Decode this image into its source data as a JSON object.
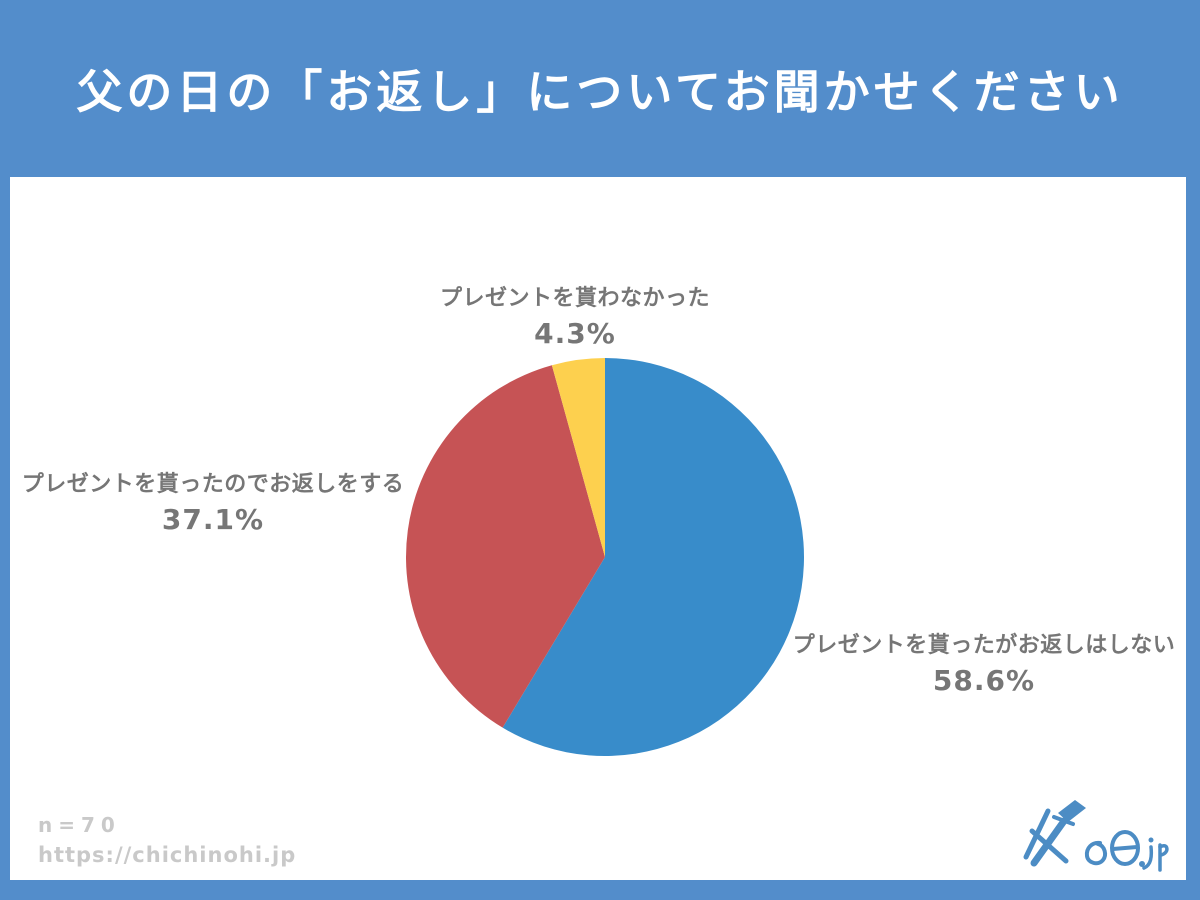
{
  "header": {
    "title": "父の日の「お返し」についてお聞かせください"
  },
  "chart_data": {
    "type": "pie",
    "title": "父の日の「お返し」についてお聞かせください",
    "start_angle_deg": 0,
    "direction": "clockwise",
    "legend_position": "labels-around-pie",
    "categories": [
      "プレゼントを貰ったがお返しはしない",
      "プレゼントを貰ったのでお返しをする",
      "プレゼントを貰わなかった"
    ],
    "values": [
      58.6,
      37.1,
      4.3
    ],
    "slices": [
      {
        "label": "プレゼントを貰ったがお返しはしない",
        "value": 58.6,
        "display": "58.6%",
        "color": "#388CCA"
      },
      {
        "label": "プレゼントを貰ったのでお返しをする",
        "value": 37.1,
        "display": "37.1%",
        "color": "#C65355"
      },
      {
        "label": "プレゼントを貰わなかった",
        "value": 4.3,
        "display": "4.3%",
        "color": "#FDD04E"
      }
    ]
  },
  "footer": {
    "sample_size": "n=70",
    "url": "https://chichinohi.jp",
    "logo_text": "父の日.jp"
  },
  "colors": {
    "background": "#538DCB",
    "panel": "#FFFFFF",
    "label_text": "#767676",
    "footer_text": "#C9C9C9",
    "logo": "#4C8CC4"
  }
}
